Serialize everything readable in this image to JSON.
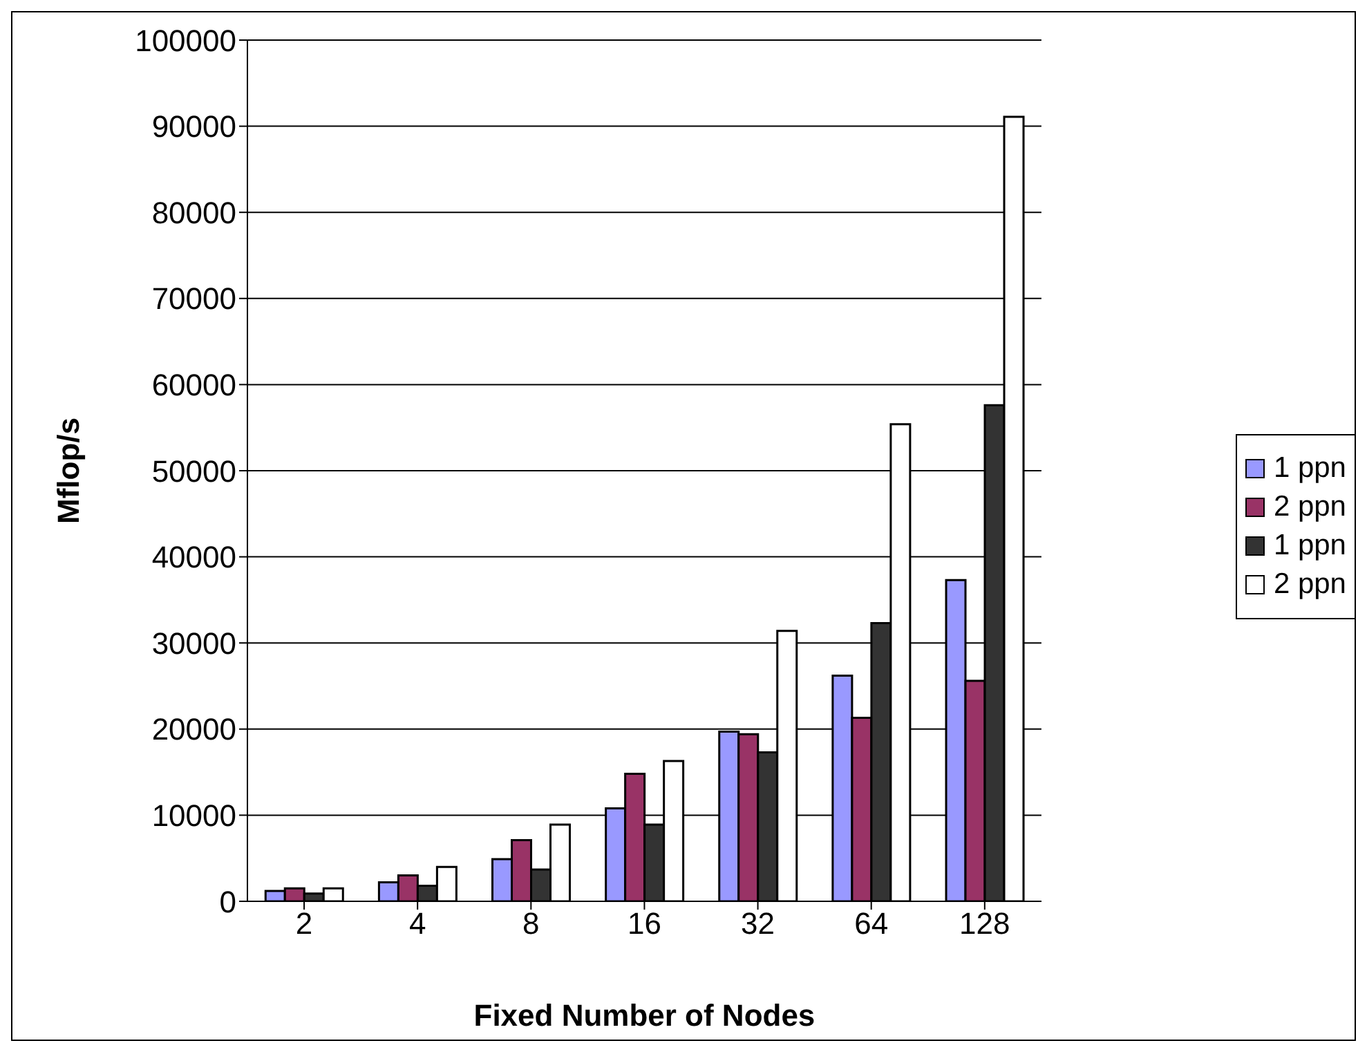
{
  "chart_data": {
    "type": "bar",
    "xlabel": "Fixed Number of Nodes",
    "ylabel": "Mflop/s",
    "categories": [
      "2",
      "4",
      "8",
      "16",
      "32",
      "64",
      "128"
    ],
    "series": [
      {
        "name": "1 ppn",
        "color": "#9999ff",
        "values": [
          1200,
          2200,
          4900,
          10800,
          19700,
          26200,
          37300
        ]
      },
      {
        "name": "2 ppn",
        "color": "#993366",
        "values": [
          1500,
          3000,
          7100,
          14800,
          19400,
          21300,
          25600
        ]
      },
      {
        "name": "1 ppn",
        "color": "#333333",
        "values": [
          900,
          1800,
          3700,
          8900,
          17300,
          32300,
          57600
        ]
      },
      {
        "name": "2 ppn",
        "color": "#ffffff",
        "values": [
          1500,
          4000,
          8900,
          16300,
          31400,
          55400,
          91100
        ]
      }
    ],
    "ylim": [
      0,
      100000
    ],
    "yticks": [
      0,
      10000,
      20000,
      30000,
      40000,
      50000,
      60000,
      70000,
      80000,
      90000,
      100000
    ],
    "grid": "y",
    "legend": "right"
  }
}
